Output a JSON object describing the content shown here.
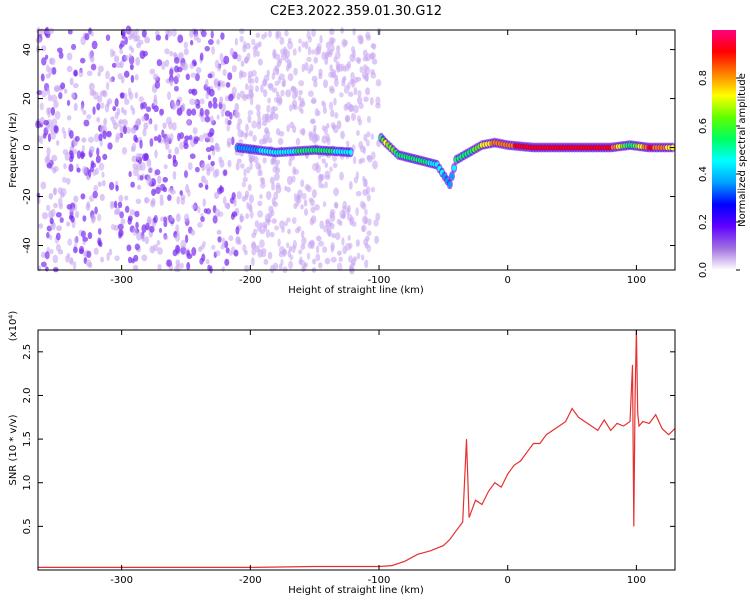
{
  "title": "C2E3.2022.359.01.30.G12",
  "chart_data": [
    {
      "type": "heatmap",
      "xlabel": "Height of straight line (km)",
      "ylabel": "Frequency (Hz)",
      "xlim": [
        -365,
        130
      ],
      "ylim": [
        -50,
        48
      ],
      "xticks": [
        -300,
        -200,
        -100,
        0,
        100
      ],
      "yticks": [
        -40,
        -20,
        0,
        20,
        40
      ],
      "colorbar": {
        "label": "Normalized spectral amplitude",
        "range": [
          0.0,
          1.0
        ],
        "ticks": [
          "0.0",
          "0.2",
          "0.4",
          "0.6",
          "0.8"
        ],
        "colors": [
          "#ffffff",
          "#a070e0",
          "#6000ff",
          "#0000ff",
          "#00a0ff",
          "#00ffff",
          "#00ff60",
          "#60ff00",
          "#ffff00",
          "#ff8000",
          "#ff0000",
          "#ff0080"
        ]
      },
      "noise_region": {
        "x": [
          -365,
          -100
        ],
        "amplitude": 0.2
      },
      "signal_track": [
        {
          "x": -210,
          "freq": 0,
          "amp": 0.35
        },
        {
          "x": -180,
          "freq": -2,
          "amp": 0.45
        },
        {
          "x": -150,
          "freq": -1,
          "amp": 0.55
        },
        {
          "x": -120,
          "freq": -2,
          "amp": 0.45
        },
        {
          "x": -100,
          "freq": 5,
          "amp": 0.4
        },
        {
          "x": -95,
          "freq": 2,
          "amp": 0.7
        },
        {
          "x": -85,
          "freq": -3,
          "amp": 0.55
        },
        {
          "x": -70,
          "freq": -5,
          "amp": 0.55
        },
        {
          "x": -55,
          "freq": -7,
          "amp": 0.45
        },
        {
          "x": -45,
          "freq": -15,
          "amp": 0.35
        },
        {
          "x": -40,
          "freq": -5,
          "amp": 0.5
        },
        {
          "x": -30,
          "freq": -2,
          "amp": 0.55
        },
        {
          "x": -20,
          "freq": 1,
          "amp": 0.7
        },
        {
          "x": -10,
          "freq": 2,
          "amp": 0.8
        },
        {
          "x": 0,
          "freq": 1,
          "amp": 0.85
        },
        {
          "x": 20,
          "freq": 0,
          "amp": 0.9
        },
        {
          "x": 50,
          "freq": 0,
          "amp": 0.9
        },
        {
          "x": 80,
          "freq": 0,
          "amp": 0.9
        },
        {
          "x": 95,
          "freq": 1,
          "amp": 0.5
        },
        {
          "x": 110,
          "freq": 0,
          "amp": 0.9
        },
        {
          "x": 130,
          "freq": 0,
          "amp": 0.7
        }
      ]
    },
    {
      "type": "line",
      "xlabel": "Height of straight line (km)",
      "ylabel": "SNR (10 * v/v)",
      "ylabel_scale": "(x10⁴)",
      "xlim": [
        -365,
        130
      ],
      "ylim": [
        0,
        2.75
      ],
      "xticks": [
        -300,
        -200,
        -100,
        0,
        100
      ],
      "yticks": [
        0.5,
        1.0,
        1.5,
        2.0,
        2.5
      ],
      "ytick_labels": [
        "0.5",
        "1.0",
        "1.5",
        "2.0",
        "2.5"
      ],
      "color": "#e83030",
      "series": [
        {
          "x": [
            -365,
            -300,
            -200,
            -150,
            -110,
            -100,
            -90,
            -80,
            -70,
            -60,
            -50,
            -45,
            -40,
            -35,
            -32,
            -30,
            -25,
            -20,
            -15,
            -10,
            -5,
            0,
            5,
            10,
            15,
            20,
            25,
            30,
            35,
            40,
            45,
            50,
            55,
            60,
            65,
            70,
            75,
            80,
            85,
            90,
            95,
            97,
            98,
            99,
            100,
            101,
            102,
            105,
            110,
            115,
            120,
            125,
            130
          ],
          "y": [
            0.03,
            0.03,
            0.03,
            0.04,
            0.04,
            0.04,
            0.05,
            0.1,
            0.18,
            0.22,
            0.28,
            0.35,
            0.45,
            0.55,
            1.5,
            0.6,
            0.8,
            0.75,
            0.9,
            1.0,
            0.95,
            1.1,
            1.2,
            1.25,
            1.35,
            1.45,
            1.45,
            1.55,
            1.6,
            1.65,
            1.7,
            1.85,
            1.75,
            1.7,
            1.65,
            1.6,
            1.72,
            1.6,
            1.68,
            1.65,
            1.7,
            2.35,
            0.5,
            2.0,
            2.75,
            1.8,
            1.65,
            1.7,
            1.68,
            1.78,
            1.62,
            1.55,
            1.62
          ]
        }
      ]
    }
  ]
}
